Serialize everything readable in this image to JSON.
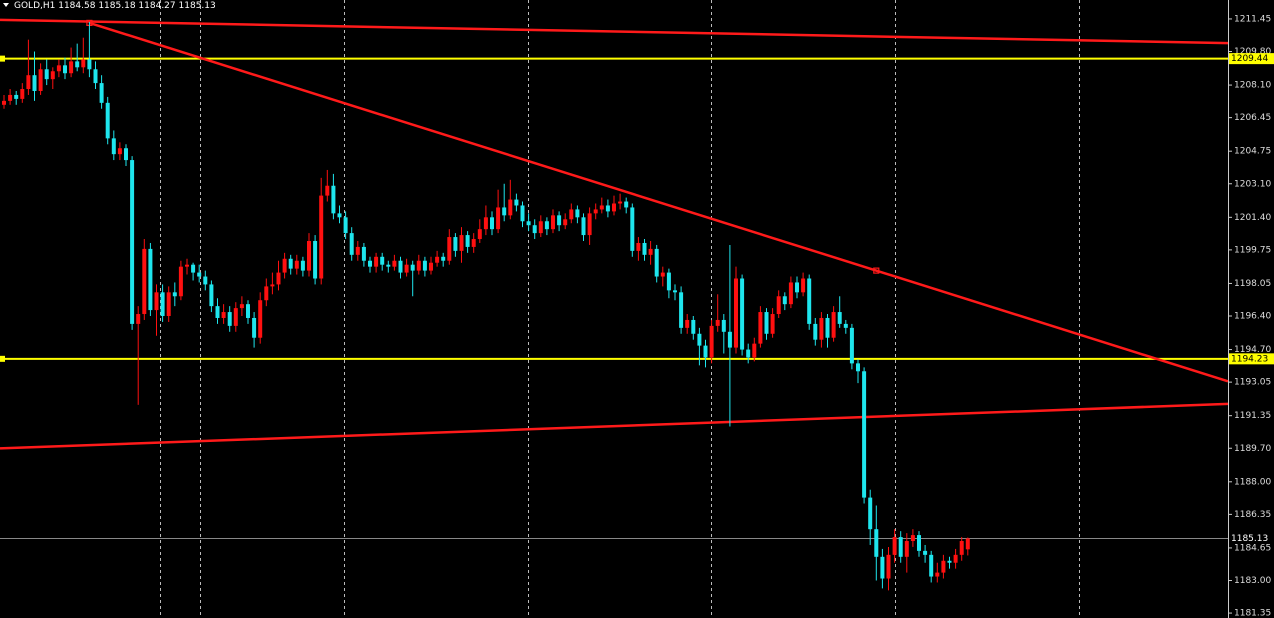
{
  "chart_data": {
    "type": "candlestick",
    "symbol": "GOLD,H1",
    "up_color": "#ff1010",
    "down_color": "#1ee6ee",
    "ylim": [
      1181.1,
      1212.41
    ],
    "yticks": [
      1211.45,
      {
        "value": 1209.8,
        "label": "1209.80"
      },
      {
        "value": 1208.1,
        "label": "1208.10"
      },
      1206.45,
      1204.75,
      {
        "value": 1203.1,
        "label": "1203.10"
      },
      {
        "value": 1201.4,
        "label": "1201.40"
      },
      1199.75,
      1198.05,
      {
        "value": 1196.4,
        "label": "1196.40"
      },
      {
        "value": 1194.7,
        "label": "1194.70"
      },
      1193.05,
      1191.35,
      {
        "value": 1189.7,
        "label": "1189.70"
      },
      {
        "value": 1188.0,
        "label": "1188.00"
      },
      1186.35,
      1184.65,
      {
        "value": 1183.0,
        "label": "1183.00"
      },
      1181.35
    ],
    "hlines": [
      {
        "value": 1209.44,
        "color": "#ffff00"
      },
      {
        "value": 1194.23,
        "color": "#ffff00"
      }
    ],
    "trendlines": [
      {
        "x": [
          0,
          200
        ],
        "values": [
          1211.4,
          1210.23
        ],
        "color": "#ff1a1a",
        "extend": "both"
      },
      {
        "x": [
          14,
          143
        ],
        "values": [
          1211.25,
          1198.7
        ],
        "color": "#ff1a1a",
        "extend": "right",
        "anchors": true
      },
      {
        "x": [
          0,
          200
        ],
        "values": [
          1189.7,
          1191.94
        ],
        "color": "#ff1a1a",
        "extend": "both"
      }
    ],
    "ohlc": [
      [
        1207.1,
        1207.6,
        1206.9,
        1207.3
      ],
      [
        1207.3,
        1207.9,
        1207.1,
        1207.6
      ],
      [
        1207.6,
        1207.8,
        1207.1,
        1207.4
      ],
      [
        1207.4,
        1208.2,
        1207.2,
        1207.9
      ],
      [
        1207.9,
        1210.4,
        1207.6,
        1208.6
      ],
      [
        1208.6,
        1209.8,
        1207.3,
        1207.8
      ],
      [
        1207.8,
        1209.2,
        1207.6,
        1208.9
      ],
      [
        1208.9,
        1209.4,
        1208.1,
        1208.4
      ],
      [
        1208.4,
        1209.0,
        1207.9,
        1208.8
      ],
      [
        1208.8,
        1209.4,
        1208.5,
        1209.1
      ],
      [
        1209.1,
        1209.5,
        1208.4,
        1208.7
      ],
      [
        1208.7,
        1210.0,
        1208.5,
        1209.3
      ],
      [
        1209.3,
        1210.2,
        1208.8,
        1209.0
      ],
      [
        1209.0,
        1210.5,
        1208.7,
        1209.4
      ],
      [
        1209.4,
        1211.3,
        1208.5,
        1208.9
      ],
      [
        1208.9,
        1209.3,
        1207.9,
        1208.2
      ],
      [
        1208.2,
        1208.6,
        1206.9,
        1207.2
      ],
      [
        1207.2,
        1207.5,
        1205.1,
        1205.4
      ],
      [
        1205.4,
        1205.8,
        1204.3,
        1204.6
      ],
      [
        1204.6,
        1205.2,
        1204.3,
        1204.9
      ],
      [
        1204.9,
        1205.1,
        1204.0,
        1204.3
      ],
      [
        1204.3,
        1204.5,
        1195.7,
        1196.0
      ],
      [
        1196.0,
        1196.9,
        1191.9,
        1196.5
      ],
      [
        1196.5,
        1200.3,
        1196.2,
        1199.8
      ],
      [
        1199.8,
        1200.1,
        1196.4,
        1196.7
      ],
      [
        1196.7,
        1198.0,
        1195.4,
        1197.6
      ],
      [
        1197.6,
        1198.0,
        1196.1,
        1196.4
      ],
      [
        1196.4,
        1197.9,
        1196.1,
        1197.6
      ],
      [
        1197.6,
        1198.1,
        1196.9,
        1197.4
      ],
      [
        1197.4,
        1199.2,
        1197.2,
        1198.9
      ],
      [
        1198.9,
        1199.3,
        1198.5,
        1199.0
      ],
      [
        1199.0,
        1199.1,
        1198.2,
        1198.6
      ],
      [
        1198.6,
        1199.0,
        1198.1,
        1198.4
      ],
      [
        1198.4,
        1198.7,
        1197.7,
        1198.0
      ],
      [
        1198.0,
        1198.2,
        1196.6,
        1196.9
      ],
      [
        1196.9,
        1197.3,
        1196.0,
        1196.3
      ],
      [
        1196.3,
        1197.0,
        1196.0,
        1196.6
      ],
      [
        1196.6,
        1196.9,
        1195.6,
        1195.9
      ],
      [
        1195.9,
        1197.1,
        1195.6,
        1196.8
      ],
      [
        1196.8,
        1197.4,
        1196.4,
        1197.0
      ],
      [
        1197.0,
        1197.2,
        1196.0,
        1196.3
      ],
      [
        1196.3,
        1196.6,
        1194.8,
        1195.3
      ],
      [
        1195.3,
        1197.6,
        1195.0,
        1197.2
      ],
      [
        1197.2,
        1198.3,
        1196.9,
        1197.9
      ],
      [
        1197.9,
        1198.6,
        1197.5,
        1198.0
      ],
      [
        1198.0,
        1199.2,
        1197.7,
        1198.6
      ],
      [
        1198.6,
        1199.6,
        1198.3,
        1199.3
      ],
      [
        1199.3,
        1199.5,
        1198.5,
        1198.8
      ],
      [
        1198.8,
        1199.5,
        1198.5,
        1199.2
      ],
      [
        1199.2,
        1199.4,
        1198.4,
        1198.7
      ],
      [
        1198.7,
        1200.6,
        1198.4,
        1200.2
      ],
      [
        1200.2,
        1200.5,
        1198.0,
        1198.3
      ],
      [
        1198.3,
        1203.4,
        1198.0,
        1202.5
      ],
      [
        1202.5,
        1203.8,
        1202.2,
        1203.0
      ],
      [
        1203.0,
        1203.6,
        1201.3,
        1201.6
      ],
      [
        1201.6,
        1202.0,
        1201.1,
        1201.4
      ],
      [
        1201.4,
        1201.7,
        1200.3,
        1200.6
      ],
      [
        1200.6,
        1200.9,
        1199.2,
        1199.5
      ],
      [
        1199.5,
        1200.2,
        1199.2,
        1199.9
      ],
      [
        1199.9,
        1200.1,
        1198.9,
        1199.2
      ],
      [
        1199.2,
        1199.4,
        1198.6,
        1198.9
      ],
      [
        1198.9,
        1199.6,
        1198.6,
        1199.4
      ],
      [
        1199.4,
        1199.6,
        1198.7,
        1199.0
      ],
      [
        1199.0,
        1199.2,
        1198.6,
        1198.9
      ],
      [
        1198.9,
        1199.5,
        1198.7,
        1199.2
      ],
      [
        1199.2,
        1199.4,
        1198.3,
        1198.6
      ],
      [
        1198.6,
        1199.3,
        1198.4,
        1199.0
      ],
      [
        1199.0,
        1199.2,
        1197.4,
        1198.7
      ],
      [
        1198.7,
        1199.5,
        1198.5,
        1199.2
      ],
      [
        1199.2,
        1199.4,
        1198.4,
        1198.7
      ],
      [
        1198.7,
        1199.4,
        1198.5,
        1199.1
      ],
      [
        1199.1,
        1199.7,
        1198.9,
        1199.4
      ],
      [
        1199.4,
        1199.6,
        1198.9,
        1199.2
      ],
      [
        1199.2,
        1200.8,
        1199.0,
        1200.4
      ],
      [
        1200.4,
        1200.6,
        1199.4,
        1199.7
      ],
      [
        1199.7,
        1200.9,
        1199.1,
        1200.5
      ],
      [
        1200.5,
        1200.7,
        1199.6,
        1199.9
      ],
      [
        1199.9,
        1200.6,
        1199.6,
        1200.3
      ],
      [
        1200.3,
        1201.3,
        1200.1,
        1200.8
      ],
      [
        1200.8,
        1202.0,
        1200.5,
        1201.4
      ],
      [
        1201.4,
        1201.7,
        1200.5,
        1200.8
      ],
      [
        1200.8,
        1202.8,
        1200.6,
        1201.9
      ],
      [
        1201.9,
        1203.1,
        1201.2,
        1201.5
      ],
      [
        1201.5,
        1203.3,
        1201.3,
        1202.3
      ],
      [
        1202.3,
        1202.6,
        1201.7,
        1202.0
      ],
      [
        1202.0,
        1202.2,
        1200.9,
        1201.2
      ],
      [
        1201.2,
        1201.6,
        1200.7,
        1201.0
      ],
      [
        1201.0,
        1201.3,
        1200.3,
        1200.6
      ],
      [
        1200.6,
        1201.5,
        1200.4,
        1201.2
      ],
      [
        1201.2,
        1201.4,
        1200.5,
        1200.8
      ],
      [
        1200.8,
        1201.8,
        1200.6,
        1201.5
      ],
      [
        1201.5,
        1201.7,
        1200.7,
        1201.0
      ],
      [
        1201.0,
        1201.6,
        1200.8,
        1201.3
      ],
      [
        1201.3,
        1202.1,
        1201.1,
        1201.8
      ],
      [
        1201.8,
        1202.0,
        1201.1,
        1201.4
      ],
      [
        1201.4,
        1201.6,
        1200.2,
        1200.5
      ],
      [
        1200.5,
        1201.9,
        1200.0,
        1201.6
      ],
      [
        1201.6,
        1202.1,
        1201.3,
        1201.8
      ],
      [
        1201.8,
        1202.4,
        1201.6,
        1202.0
      ],
      [
        1202.0,
        1202.3,
        1201.4,
        1201.7
      ],
      [
        1201.7,
        1202.5,
        1201.5,
        1202.1
      ],
      [
        1202.1,
        1202.6,
        1201.8,
        1202.2
      ],
      [
        1202.2,
        1202.4,
        1201.6,
        1201.9
      ],
      [
        1201.9,
        1202.1,
        1199.4,
        1199.7
      ],
      [
        1199.7,
        1200.4,
        1199.2,
        1200.1
      ],
      [
        1200.1,
        1200.3,
        1199.2,
        1199.5
      ],
      [
        1199.5,
        1200.2,
        1199.0,
        1199.8
      ],
      [
        1199.8,
        1200.0,
        1198.1,
        1198.4
      ],
      [
        1198.4,
        1198.9,
        1197.9,
        1198.6
      ],
      [
        1198.6,
        1198.8,
        1197.3,
        1197.7
      ],
      [
        1197.7,
        1198.0,
        1197.2,
        1197.6
      ],
      [
        1197.6,
        1197.9,
        1195.5,
        1195.8
      ],
      [
        1195.8,
        1196.5,
        1195.5,
        1196.2
      ],
      [
        1196.2,
        1196.4,
        1195.2,
        1195.5
      ],
      [
        1195.5,
        1195.8,
        1193.9,
        1194.9
      ],
      [
        1194.9,
        1195.2,
        1193.8,
        1194.3
      ],
      [
        1194.3,
        1196.2,
        1194.0,
        1195.9
      ],
      [
        1195.9,
        1197.5,
        1195.6,
        1196.2
      ],
      [
        1196.2,
        1196.5,
        1194.5,
        1195.6
      ],
      [
        1195.6,
        1200.0,
        1190.8,
        1194.8
      ],
      [
        1194.8,
        1198.9,
        1194.5,
        1198.3
      ],
      [
        1198.3,
        1198.5,
        1194.4,
        1194.7
      ],
      [
        1194.7,
        1195.0,
        1194.0,
        1194.3
      ],
      [
        1194.3,
        1195.3,
        1194.1,
        1195.0
      ],
      [
        1195.0,
        1196.9,
        1194.8,
        1196.6
      ],
      [
        1196.6,
        1196.8,
        1195.2,
        1195.5
      ],
      [
        1195.5,
        1196.8,
        1195.3,
        1196.5
      ],
      [
        1196.5,
        1197.7,
        1196.3,
        1197.4
      ],
      [
        1197.4,
        1197.6,
        1196.7,
        1197.0
      ],
      [
        1197.0,
        1198.4,
        1196.8,
        1198.1
      ],
      [
        1198.1,
        1198.4,
        1197.3,
        1197.6
      ],
      [
        1197.6,
        1198.6,
        1197.4,
        1198.3
      ],
      [
        1198.3,
        1198.5,
        1195.7,
        1196.0
      ],
      [
        1196.0,
        1196.3,
        1194.9,
        1195.2
      ],
      [
        1195.2,
        1196.6,
        1194.8,
        1196.3
      ],
      [
        1196.3,
        1196.5,
        1194.8,
        1195.3
      ],
      [
        1195.3,
        1196.9,
        1195.1,
        1196.6
      ],
      [
        1196.6,
        1197.4,
        1195.8,
        1196.0
      ],
      [
        1196.0,
        1196.2,
        1195.5,
        1195.8
      ],
      [
        1195.8,
        1196.0,
        1193.7,
        1194.0
      ],
      [
        1194.0,
        1194.2,
        1193.0,
        1193.6
      ],
      [
        1193.6,
        1193.8,
        1186.9,
        1187.2
      ],
      [
        1187.2,
        1187.6,
        1184.8,
        1185.6
      ],
      [
        1185.6,
        1186.8,
        1183.0,
        1184.2
      ],
      [
        1184.2,
        1184.6,
        1182.6,
        1183.1
      ],
      [
        1183.1,
        1184.7,
        1182.5,
        1184.3
      ],
      [
        1184.3,
        1185.6,
        1183.9,
        1185.2
      ],
      [
        1185.2,
        1185.5,
        1183.9,
        1184.2
      ],
      [
        1184.2,
        1185.4,
        1183.4,
        1185.0
      ],
      [
        1185.0,
        1185.6,
        1184.7,
        1185.3
      ],
      [
        1185.3,
        1185.5,
        1184.2,
        1184.5
      ],
      [
        1184.5,
        1184.8,
        1183.9,
        1184.3
      ],
      [
        1184.3,
        1184.5,
        1182.9,
        1183.2
      ],
      [
        1183.2,
        1183.9,
        1182.9,
        1183.4
      ],
      [
        1183.4,
        1184.3,
        1183.1,
        1184.0
      ],
      [
        1184.0,
        1184.2,
        1183.6,
        1183.9
      ],
      [
        1183.9,
        1184.6,
        1183.6,
        1184.3
      ],
      [
        1184.3,
        1185.2,
        1184.0,
        1185.0
      ],
      [
        1184.58,
        1185.18,
        1184.27,
        1185.13
      ]
    ]
  }
}
